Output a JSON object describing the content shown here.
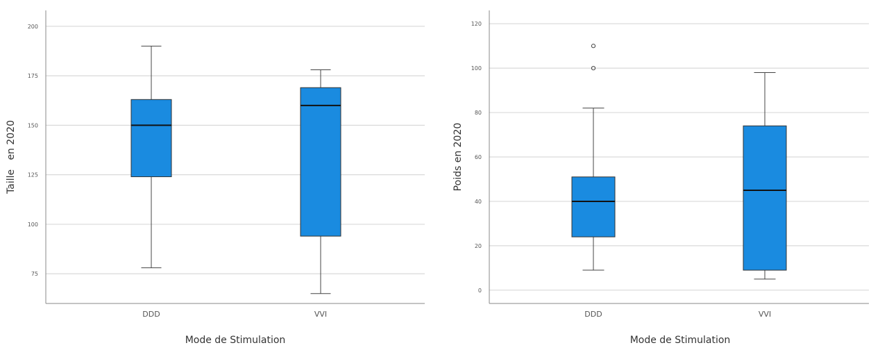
{
  "chart_data": [
    {
      "type": "box",
      "title": "",
      "xlabel": "Mode de Stimulation",
      "ylabel": "Taille   en 2020",
      "categories": [
        "DDD",
        "VVI"
      ],
      "yticks": [
        "75",
        "100",
        "125",
        "150",
        "175",
        "200"
      ],
      "ylim": [
        60,
        208
      ],
      "grid": true,
      "box_color": "#1a8be0",
      "boxes": [
        {
          "category": "DDD",
          "min": 78,
          "q1": 124,
          "median": 150,
          "q3": 163,
          "max": 190,
          "outliers": []
        },
        {
          "category": "VVI",
          "min": 65,
          "q1": 94,
          "median": 160,
          "q3": 169,
          "max": 178,
          "outliers": []
        }
      ]
    },
    {
      "type": "box",
      "title": "",
      "xlabel": "Mode de Stimulation",
      "ylabel": "Poids en 2020",
      "categories": [
        "DDD",
        "VVI"
      ],
      "yticks": [
        "0",
        "20",
        "40",
        "60",
        "80",
        "100",
        "120"
      ],
      "ylim": [
        -6,
        126
      ],
      "grid": true,
      "box_color": "#1a8be0",
      "boxes": [
        {
          "category": "DDD",
          "min": 9,
          "q1": 24,
          "median": 40,
          "q3": 51,
          "max": 82,
          "outliers": [
            100,
            110
          ]
        },
        {
          "category": "VVI",
          "min": 5,
          "q1": 9,
          "median": 45,
          "q3": 74,
          "max": 98,
          "outliers": []
        }
      ]
    }
  ]
}
